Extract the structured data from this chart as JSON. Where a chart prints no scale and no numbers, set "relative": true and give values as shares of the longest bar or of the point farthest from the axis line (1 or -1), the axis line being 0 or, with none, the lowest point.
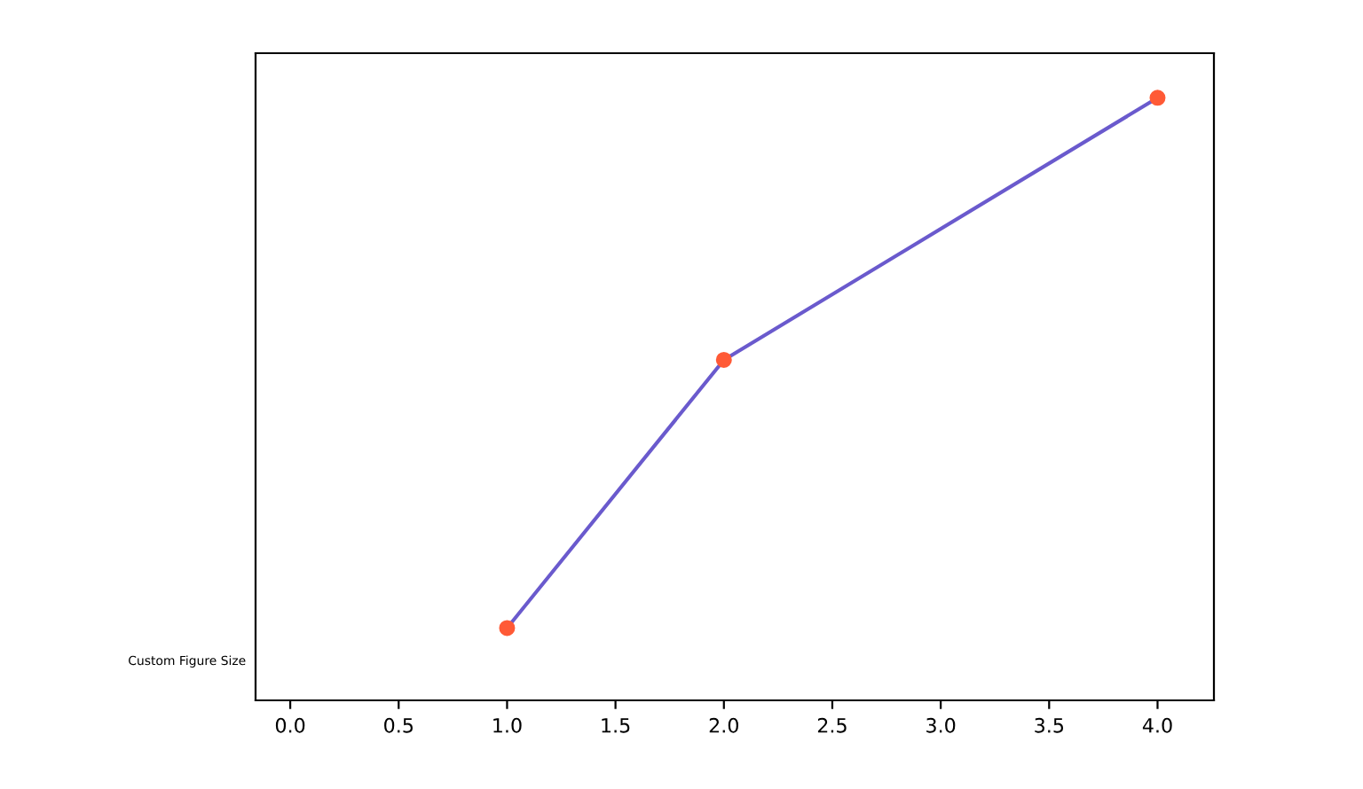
{
  "chart_data": {
    "type": "line",
    "relative": true,
    "ylabel": "Custom Figure Size",
    "x": [
      1,
      2,
      4
    ],
    "series": [
      {
        "color": "#6a5acd",
        "values": [
          0.12,
          0.565,
          1
        ]
      },
      {
        "type": "scatter",
        "color": "#ff5a36",
        "values": [
          0.12,
          0.565,
          1
        ]
      }
    ],
    "xlim": [
      -0.16,
      4.26
    ],
    "xticks": [
      {
        "value": 0,
        "label": "0.0"
      },
      {
        "value": 0.5,
        "label": "0.5"
      },
      {
        "value": 1,
        "label": "1.0"
      },
      {
        "value": 1.5,
        "label": "1.5"
      },
      {
        "value": 2,
        "label": "2.0"
      },
      {
        "value": 2.5,
        "label": "2.5"
      },
      {
        "value": 3,
        "label": "3.0"
      },
      {
        "value": 3.5,
        "label": "3.5"
      },
      {
        "value": 4,
        "label": "4.0"
      }
    ],
    "grid": false,
    "legend": false
  }
}
